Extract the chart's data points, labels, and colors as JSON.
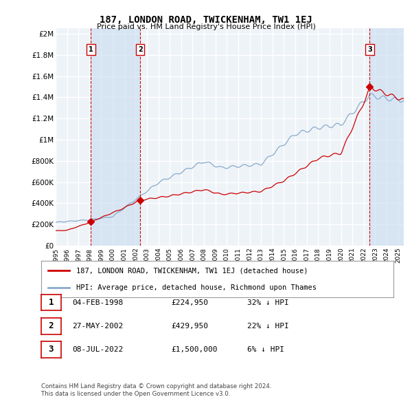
{
  "title": "187, LONDON ROAD, TWICKENHAM, TW1 1EJ",
  "subtitle": "Price paid vs. HM Land Registry's House Price Index (HPI)",
  "ylabel_ticks": [
    "£0",
    "£200K",
    "£400K",
    "£600K",
    "£800K",
    "£1M",
    "£1.2M",
    "£1.4M",
    "£1.6M",
    "£1.8M",
    "£2M"
  ],
  "ytick_values": [
    0,
    200000,
    400000,
    600000,
    800000,
    1000000,
    1200000,
    1400000,
    1600000,
    1800000,
    2000000
  ],
  "ylim": [
    0,
    2050000
  ],
  "xlim_start": 1995.0,
  "xlim_end": 2025.5,
  "sale_dates": [
    1998.09,
    2002.41,
    2022.52
  ],
  "sale_prices": [
    224950,
    429950,
    1500000
  ],
  "sale_labels": [
    "1",
    "2",
    "3"
  ],
  "line_color_red": "#cc0000",
  "line_color_blue": "#88aacc",
  "shade_color": "#ddeeff",
  "vline_color": "#cc0000",
  "background_color": "#eef3f8",
  "grid_color": "#ffffff",
  "legend_entries": [
    "187, LONDON ROAD, TWICKENHAM, TW1 1EJ (detached house)",
    "HPI: Average price, detached house, Richmond upon Thames"
  ],
  "table_rows": [
    [
      "1",
      "04-FEB-1998",
      "£224,950",
      "32% ↓ HPI"
    ],
    [
      "2",
      "27-MAY-2002",
      "£429,950",
      "22% ↓ HPI"
    ],
    [
      "3",
      "08-JUL-2022",
      "£1,500,000",
      "6% ↓ HPI"
    ]
  ],
  "footnote1": "Contains HM Land Registry data © Crown copyright and database right 2024.",
  "footnote2": "This data is licensed under the Open Government Licence v3.0.",
  "xtick_years": [
    1995,
    1996,
    1997,
    1998,
    1999,
    2000,
    2001,
    2002,
    2003,
    2004,
    2005,
    2006,
    2007,
    2008,
    2009,
    2010,
    2011,
    2012,
    2013,
    2014,
    2015,
    2016,
    2017,
    2018,
    2019,
    2020,
    2021,
    2022,
    2023,
    2024,
    2025
  ]
}
